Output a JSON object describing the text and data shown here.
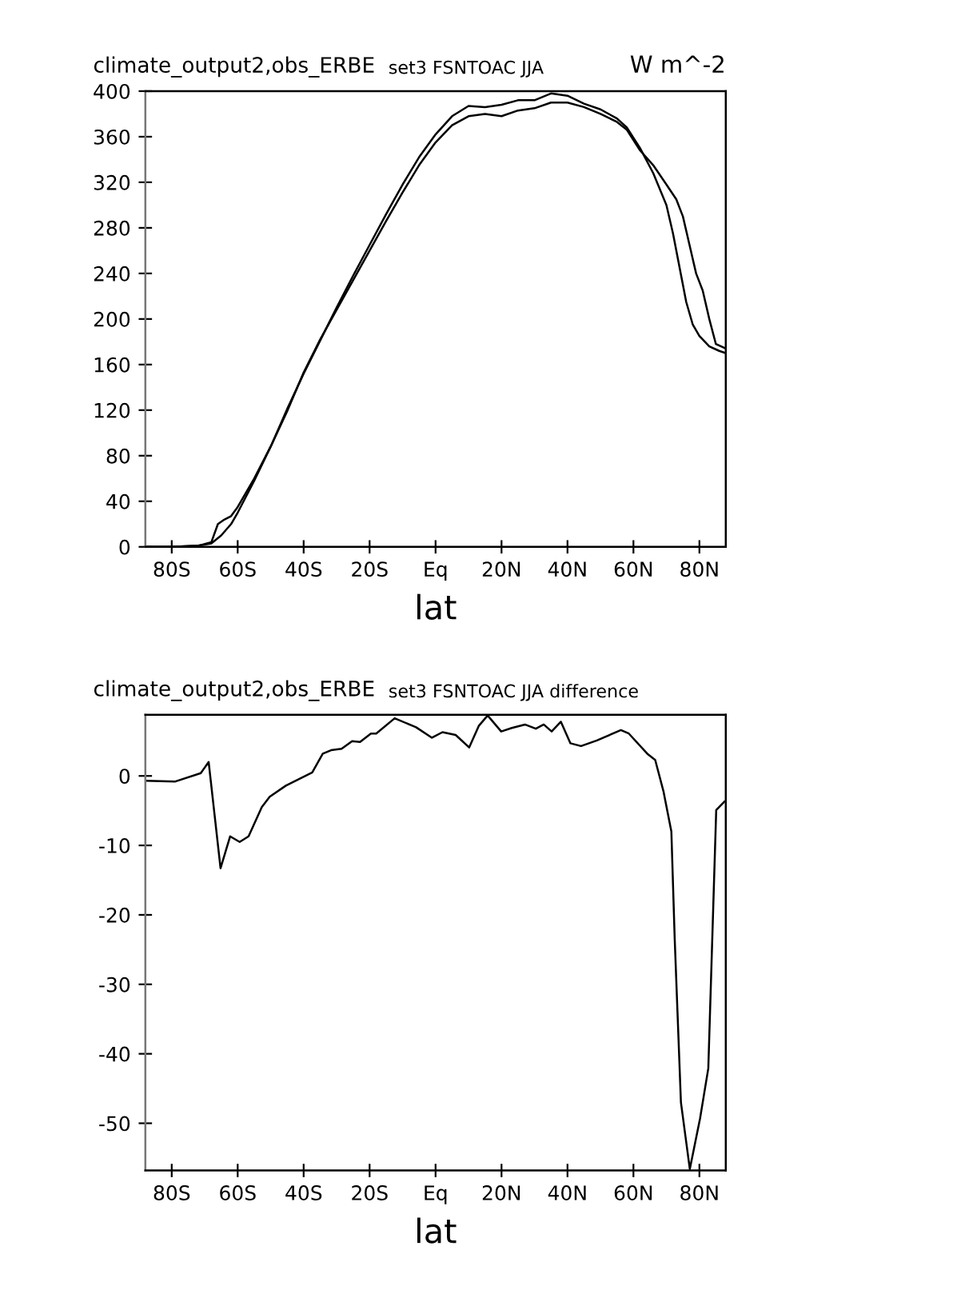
{
  "chart_data": [
    {
      "type": "line",
      "title": "climate_output2,obs_ERBE",
      "subtitle": "set3 FSNTOAC JJA",
      "annotations": [
        "W m^-2"
      ],
      "xlabel": "lat",
      "xlim": [
        -88,
        88
      ],
      "xticks": [
        {
          "value": -80,
          "label": "80S"
        },
        {
          "value": -60,
          "label": "60S"
        },
        {
          "value": -40,
          "label": "40S"
        },
        {
          "value": -20,
          "label": "20S"
        },
        {
          "value": 0,
          "label": "Eq"
        },
        {
          "value": 20,
          "label": "20N"
        },
        {
          "value": 40,
          "label": "40N"
        },
        {
          "value": 60,
          "label": "60N"
        },
        {
          "value": 80,
          "label": "80N"
        }
      ],
      "ylim": [
        0,
        400
      ],
      "yticks": [
        0,
        40,
        80,
        120,
        160,
        200,
        240,
        280,
        320,
        360,
        400
      ],
      "grid": false,
      "legend": false,
      "marker": "none",
      "line_style": "solid",
      "series": [
        {
          "color": "#000000",
          "x": [
            -88,
            -80,
            -72,
            -68,
            -65,
            -62,
            -60,
            -55,
            -50,
            -45,
            -40,
            -35,
            -30,
            -25,
            -20,
            -15,
            -10,
            -5,
            0,
            5,
            10,
            15,
            20,
            25,
            30,
            35,
            40,
            45,
            50,
            55,
            58,
            62,
            66,
            70,
            72,
            74,
            76,
            78,
            80,
            83,
            86,
            88
          ],
          "values": [
            0,
            0,
            1,
            3,
            10,
            20,
            30,
            58,
            88,
            121,
            152,
            181,
            210,
            238,
            265,
            292,
            318,
            342,
            362,
            378,
            387,
            386,
            388,
            392,
            392,
            398,
            396,
            389,
            384,
            376,
            368,
            350,
            328,
            300,
            275,
            245,
            215,
            195,
            185,
            176,
            172,
            170
          ]
        },
        {
          "color": "#000000",
          "x": [
            -88,
            -80,
            -72,
            -68,
            -66,
            -64,
            -62,
            -60,
            -55,
            -50,
            -45,
            -40,
            -35,
            -30,
            -25,
            -20,
            -15,
            -10,
            -5,
            0,
            5,
            10,
            15,
            20,
            25,
            30,
            35,
            40,
            45,
            50,
            55,
            58,
            62,
            66,
            70,
            73,
            75,
            77,
            79,
            81,
            83,
            85,
            88
          ],
          "values": [
            0,
            0,
            1,
            4,
            20,
            24,
            27,
            35,
            60,
            88,
            119,
            153,
            182,
            208,
            234,
            260,
            286,
            311,
            335,
            355,
            370,
            378,
            380,
            378,
            383,
            385,
            390,
            390,
            386,
            380,
            373,
            366,
            348,
            335,
            318,
            305,
            290,
            265,
            240,
            225,
            200,
            178,
            174
          ]
        }
      ]
    },
    {
      "type": "line",
      "title": "climate_output2,obs_ERBE",
      "subtitle": "set3 FSNTOAC JJA difference",
      "xlabel": "lat",
      "xlim": [
        -88,
        88
      ],
      "xticks": [
        {
          "value": -80,
          "label": "80S"
        },
        {
          "value": -60,
          "label": "60S"
        },
        {
          "value": -40,
          "label": "40S"
        },
        {
          "value": -20,
          "label": "20S"
        },
        {
          "value": 0,
          "label": "Eq"
        },
        {
          "value": 20,
          "label": "20N"
        },
        {
          "value": 40,
          "label": "40N"
        },
        {
          "value": 60,
          "label": "60N"
        },
        {
          "value": 80,
          "label": "80N"
        }
      ],
      "ylim": [
        -56.8,
        8.8
      ],
      "yticks": [
        0,
        -10,
        -20,
        -30,
        -40,
        -50
      ],
      "grid": false,
      "legend": false,
      "marker": "none",
      "line_style": "solid",
      "series": [
        {
          "color": "#000000",
          "x": [
            -87.6,
            -78.9,
            -71.2,
            -68.8,
            -65.2,
            -62.3,
            -59.4,
            -56.7,
            -52.7,
            -50.3,
            -45.4,
            -37.4,
            -34.2,
            -31.7,
            -28.5,
            -25.3,
            -22.9,
            -19.6,
            -18.0,
            -12.4,
            -5.9,
            -1.1,
            2.1,
            6.1,
            10.2,
            13.1,
            15.8,
            19.9,
            23.1,
            27.1,
            30.4,
            32.8,
            35.2,
            38.0,
            40.9,
            44.1,
            48.9,
            56.2,
            58.6,
            64.2,
            66.6,
            69.1,
            71.5,
            72.5,
            74.4,
            77.1,
            80.2,
            82.7,
            85.1,
            87.6
          ],
          "values": [
            -0.7,
            -0.8,
            0.4,
            2.0,
            -13.3,
            -8.7,
            -9.5,
            -8.7,
            -4.5,
            -3.0,
            -1.4,
            0.5,
            3.2,
            3.7,
            3.9,
            5.0,
            4.9,
            6.1,
            6.1,
            8.3,
            7.0,
            5.5,
            6.3,
            5.9,
            4.1,
            7.2,
            8.7,
            6.4,
            6.9,
            7.4,
            6.8,
            7.4,
            6.4,
            7.8,
            4.7,
            4.3,
            5.1,
            6.6,
            6.1,
            3.2,
            2.3,
            -2.2,
            -8.0,
            -23.3,
            -47.0,
            -56.6,
            -49.3,
            -42.1,
            -4.9,
            -3.7
          ]
        }
      ]
    }
  ]
}
